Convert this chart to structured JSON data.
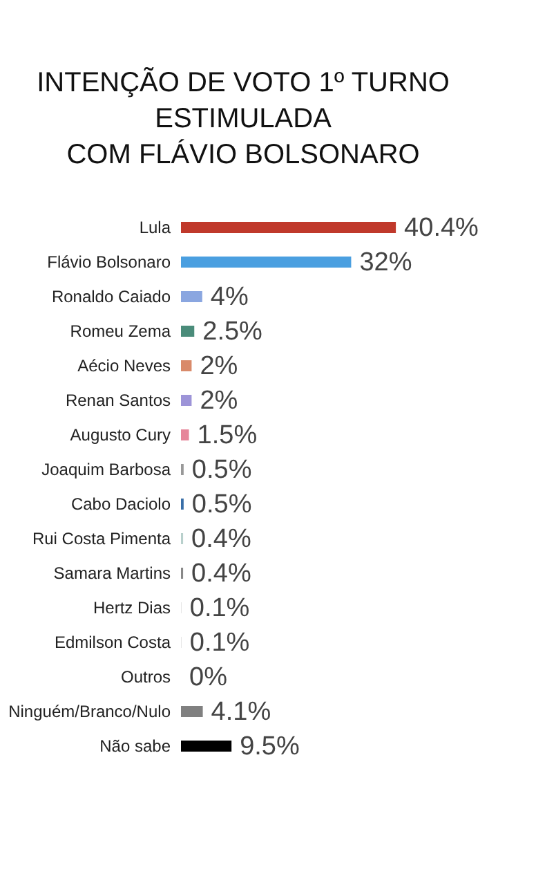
{
  "chart_data": {
    "type": "bar",
    "orientation": "horizontal",
    "title": [
      "INTENÇÃO DE VOTO 1º TURNO",
      "ESTIMULADA",
      "COM FLÁVIO BOLSONARO"
    ],
    "categories": [
      "Lula",
      "Flávio Bolsonaro",
      "Ronaldo Caiado",
      "Romeu Zema",
      "Aécio Neves",
      "Renan Santos",
      "Augusto Cury",
      "Joaquim Barbosa",
      "Cabo Daciolo",
      "Rui Costa Pimenta",
      "Samara Martins",
      "Hertz Dias",
      "Edmilson Costa",
      "Outros",
      "Ninguém/Branco/Nulo",
      "Não sabe"
    ],
    "values": [
      40.4,
      32,
      4,
      2.5,
      2,
      2,
      1.5,
      0.5,
      0.5,
      0.4,
      0.4,
      0.1,
      0.1,
      0,
      4.1,
      9.5
    ],
    "colors": [
      "#c0392b",
      "#4a9fe0",
      "#8aa6e0",
      "#4a8c7a",
      "#d98a6a",
      "#9d94d8",
      "#e6869a",
      "#999999",
      "#3a6fa8",
      "#b8d0cc",
      "#888888",
      "#dddddd",
      "#dddddd",
      "#ffffff",
      "#808080",
      "#000000"
    ],
    "value_labels": [
      "40.4%",
      "32%",
      "4%",
      "2.5%",
      "2%",
      "2%",
      "1.5%",
      "0.5%",
      "0.5%",
      "0.4%",
      "0.4%",
      "0.1%",
      "0.1%",
      "0%",
      "4.1%",
      "9.5%"
    ],
    "grid": false
  }
}
